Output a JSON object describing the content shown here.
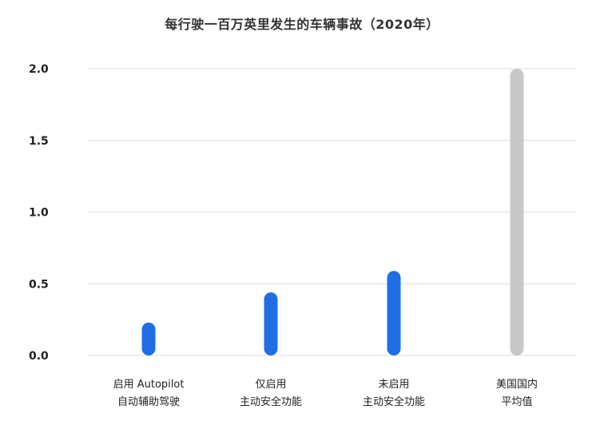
{
  "chart_data": {
    "type": "bar",
    "title": "每行驶一百万英里发生的车辆事故（2020年）",
    "xlabel": "",
    "ylabel": "",
    "ylim": [
      0,
      2.0
    ],
    "yticks": [
      "0.0",
      "0.5",
      "1.0",
      "1.5",
      "2.0"
    ],
    "grid": true,
    "categories": [
      [
        "启用 Autopilot",
        "自动辅助驾驶"
      ],
      [
        "仅启用",
        "主动安全功能"
      ],
      [
        "未启用",
        "主动安全功能"
      ],
      [
        "美国国内",
        "平均值"
      ]
    ],
    "values": [
      0.23,
      0.44,
      0.59,
      2.0
    ],
    "colors": [
      "#1f6ee6",
      "#1f6ee6",
      "#1f6ee6",
      "#c8c8c8"
    ]
  }
}
